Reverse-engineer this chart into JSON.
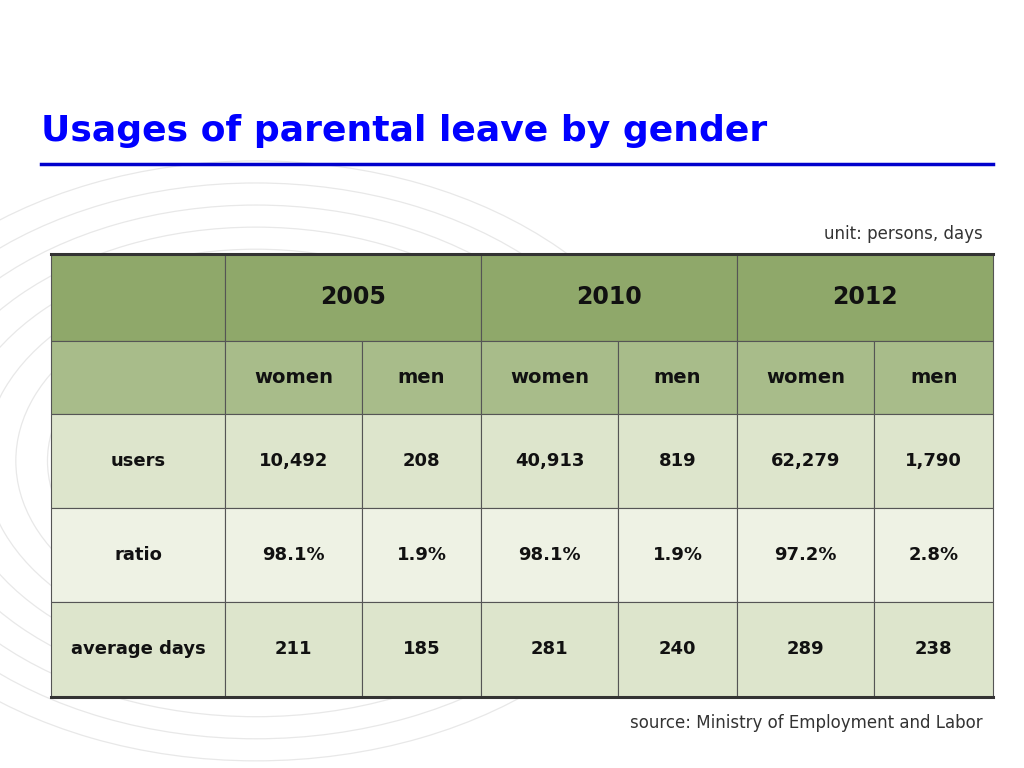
{
  "title": "Usages of parental leave by gender",
  "title_color": "#0000FF",
  "title_fontsize": 26,
  "top_bar_color": "#7AB317",
  "underline_color": "#0000CC",
  "bg_color": "#FFFFFF",
  "unit_label": "unit: persons, days",
  "source_label": "source: Ministry of Employment and Labor",
  "header_bg_dark": "#8FA86A",
  "header_bg_medium": "#A8BC8A",
  "row_bg_light": "#DDE5CC",
  "row_bg_white": "#EEF2E4",
  "border_color": "#555555",
  "years": [
    "2005",
    "2010",
    "2012"
  ],
  "sub_headers": [
    "women",
    "men"
  ],
  "row_labels": [
    "users",
    "ratio",
    "average days"
  ],
  "data": {
    "users": {
      "2005": {
        "women": "10,492",
        "men": "208"
      },
      "2010": {
        "women": "40,913",
        "men": "819"
      },
      "2012": {
        "women": "62,279",
        "men": "1,790"
      }
    },
    "ratio": {
      "2005": {
        "women": "98.1%",
        "men": "1.9%"
      },
      "2010": {
        "women": "98.1%",
        "men": "1.9%"
      },
      "2012": {
        "women": "97.2%",
        "men": "2.8%"
      }
    },
    "average days": {
      "2005": {
        "women": "211",
        "men": "185"
      },
      "2010": {
        "women": "281",
        "men": "240"
      },
      "2012": {
        "women": "289",
        "men": "238"
      }
    }
  }
}
